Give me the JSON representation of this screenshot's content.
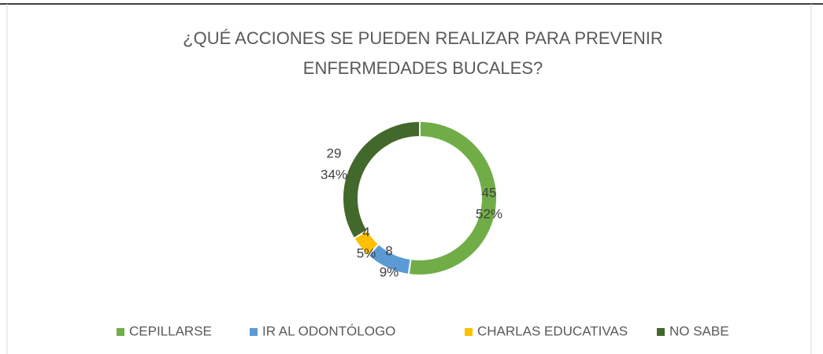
{
  "chart_data": {
    "type": "donut",
    "title": [
      "¿QUÉ ACCIONES SE PUEDEN REALIZAR PARA PREVENIR",
      "ENFERMEDADES BUCALES?"
    ],
    "categories": [
      "CEPILLARSE",
      "IR AL ODONTÓLOGO",
      "CHARLAS EDUCATIVAS",
      "NO SABE"
    ],
    "values": [
      45,
      8,
      4,
      29
    ],
    "percent_labels": [
      "52%",
      "9%",
      "5%",
      "34%"
    ],
    "colors": [
      "#70ad47",
      "#5b9bd5",
      "#ffc000",
      "#43682b"
    ],
    "legend": "bottom"
  }
}
